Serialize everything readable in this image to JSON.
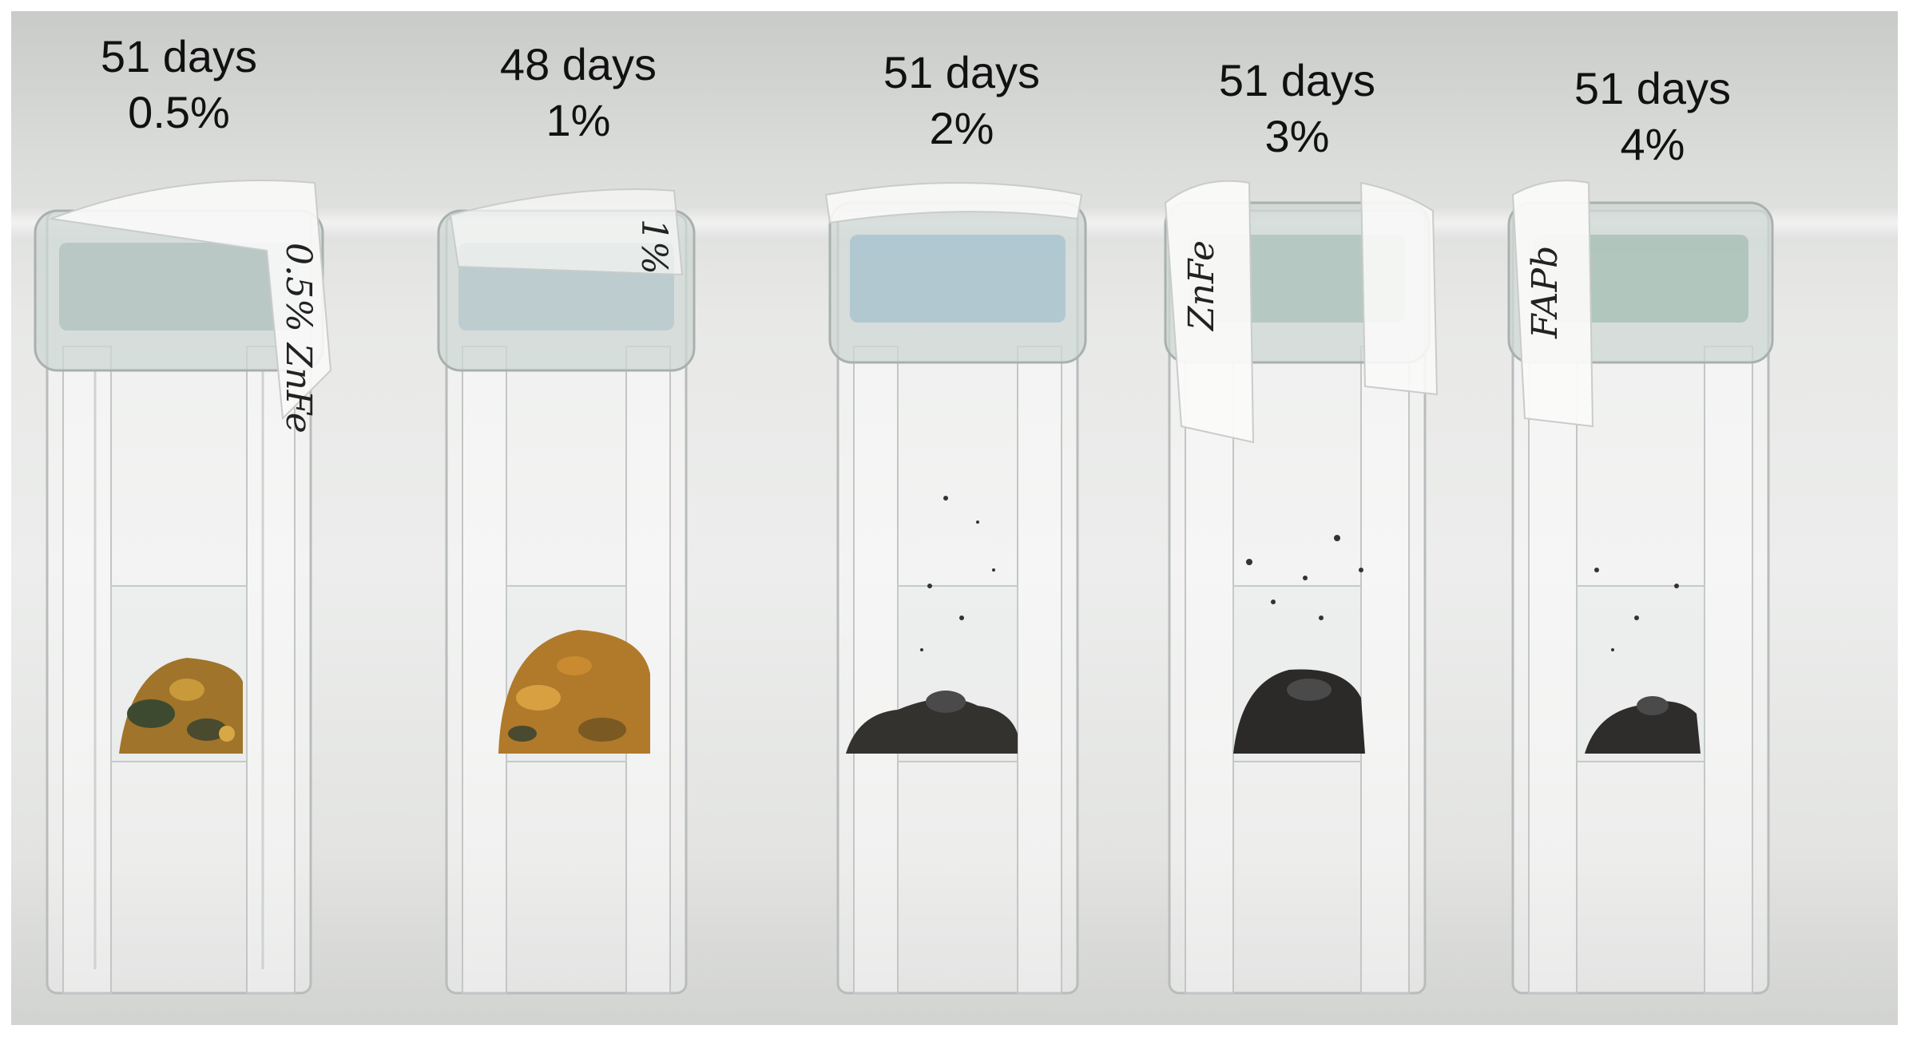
{
  "samples": [
    {
      "days": "51 days",
      "concentration": "0.5%",
      "cap_label": "0.5% ZnFe",
      "residue_color": "#a0742a"
    },
    {
      "days": "48 days",
      "concentration": "1%",
      "cap_label": "1%",
      "residue_color": "#b07a2a"
    },
    {
      "days": "51 days",
      "concentration": "2%",
      "cap_label": "",
      "residue_color": "#34322f"
    },
    {
      "days": "51 days",
      "concentration": "3%",
      "cap_label": "ZnFe",
      "residue_color": "#2b2a28"
    },
    {
      "days": "51 days",
      "concentration": "4%",
      "cap_label": "FAPb",
      "residue_color": "#2e2d2b"
    }
  ]
}
